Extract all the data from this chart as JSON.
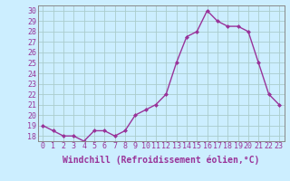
{
  "x": [
    0,
    1,
    2,
    3,
    4,
    5,
    6,
    7,
    8,
    9,
    10,
    11,
    12,
    13,
    14,
    15,
    16,
    17,
    18,
    19,
    20,
    21,
    22,
    23
  ],
  "y": [
    19,
    18.5,
    18,
    18,
    17.5,
    18.5,
    18.5,
    18,
    18.5,
    20,
    20.5,
    21,
    22,
    25,
    27.5,
    28,
    30,
    29,
    28.5,
    28.5,
    28,
    25,
    22,
    21
  ],
  "line_color": "#993399",
  "marker": "D",
  "marker_size": 2,
  "linewidth": 1.0,
  "xlabel": "Windchill (Refroidissement éolien,°C)",
  "ylim": [
    17.5,
    30.5
  ],
  "xlim": [
    -0.5,
    23.5
  ],
  "yticks": [
    18,
    19,
    20,
    21,
    22,
    23,
    24,
    25,
    26,
    27,
    28,
    29,
    30
  ],
  "xticks": [
    0,
    1,
    2,
    3,
    4,
    5,
    6,
    7,
    8,
    9,
    10,
    11,
    12,
    13,
    14,
    15,
    16,
    17,
    18,
    19,
    20,
    21,
    22,
    23
  ],
  "bg_color": "#cceeff",
  "grid_color": "#aacccc",
  "tick_label_fontsize": 6,
  "xlabel_fontsize": 7,
  "tick_color": "#993399",
  "label_color": "#993399"
}
